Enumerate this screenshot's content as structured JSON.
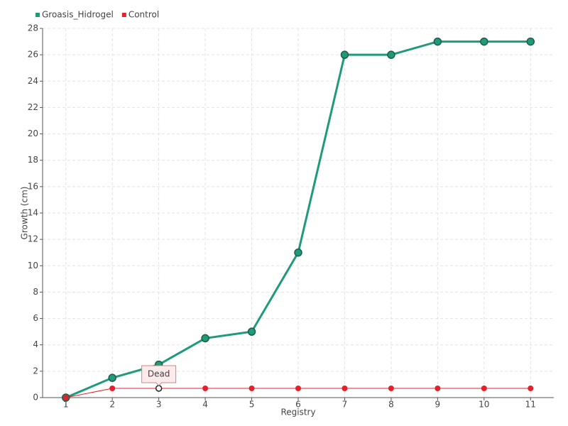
{
  "chart_data": {
    "type": "line",
    "x_label": "Registry",
    "y_label": "Growth (cm)",
    "categories": [
      "1",
      "2",
      "3",
      "4",
      "5",
      "6",
      "7",
      "8",
      "9",
      "10",
      "11"
    ],
    "series": [
      {
        "name": "Groasis_Hidrogel",
        "color": "#1f9a7a",
        "values": [
          0,
          1.5,
          2.5,
          4.5,
          5,
          11,
          26,
          26,
          27,
          27,
          27
        ]
      },
      {
        "name": "Control",
        "color": "#e3202b",
        "values": [
          0,
          0.7,
          0.7,
          0.7,
          0.7,
          0.7,
          0.7,
          0.7,
          0.7,
          0.7,
          0.7
        ]
      }
    ],
    "annotations": [
      {
        "text": "Dead",
        "series": "Control",
        "x": "3"
      }
    ],
    "ylim": [
      0,
      28
    ],
    "yticks": [
      0,
      2,
      4,
      6,
      8,
      10,
      12,
      14,
      16,
      18,
      20,
      22,
      24,
      26,
      28
    ],
    "grid": true,
    "legend": "top-left"
  }
}
